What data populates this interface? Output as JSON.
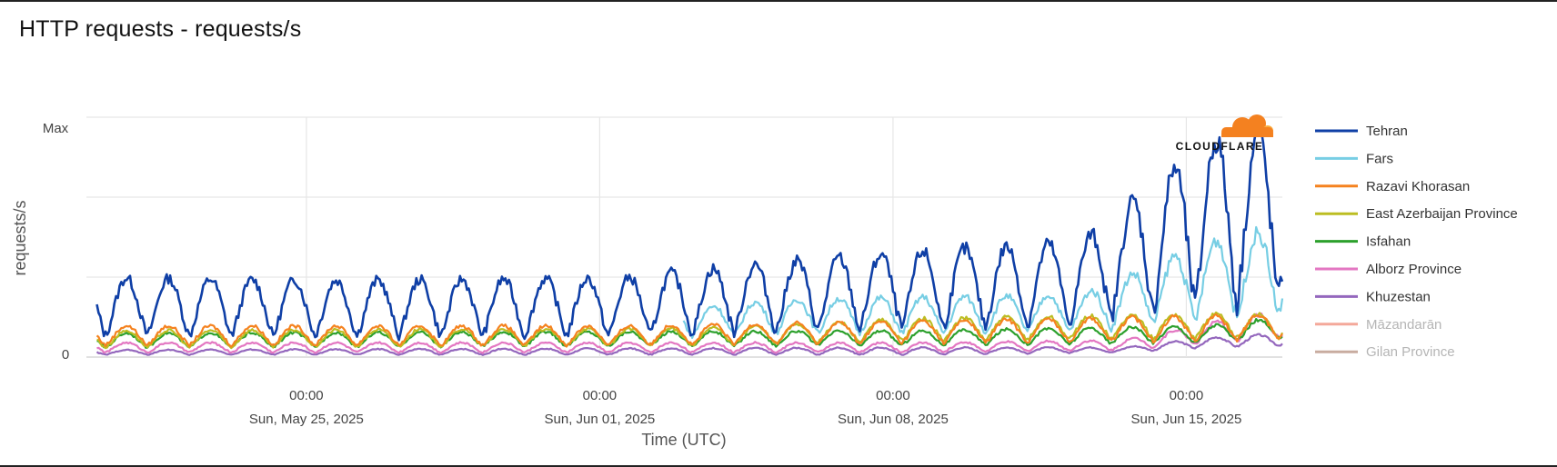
{
  "title": "HTTP requests - requests/s",
  "logo": "CLOUDFLARE",
  "chart_data": {
    "type": "line",
    "title": "HTTP requests - requests/s",
    "ylabel": "requests/s",
    "xlabel": "Time (UTC)",
    "y_ticks": [
      "Max",
      "0"
    ],
    "ylim": [
      0,
      100
    ],
    "xlim": [
      "2025-05-19T18:00",
      "2025-06-17T07:00"
    ],
    "x_ticks": [
      {
        "time": "00:00",
        "date": "Sun, May 25, 2025",
        "x": "2025-05-25T00:00"
      },
      {
        "time": "00:00",
        "date": "Sun, Jun 01, 2025",
        "x": "2025-06-01T00:00"
      },
      {
        "time": "00:00",
        "date": "Sun, Jun 08, 2025",
        "x": "2025-06-08T00:00"
      },
      {
        "time": "00:00",
        "date": "Sun, Jun 15, 2025",
        "x": "2025-06-15T00:00"
      }
    ],
    "grid": true,
    "legend_position": "right",
    "series": [
      {
        "name": "Tehran",
        "color": "#0f3fa6",
        "dates": [
          "2025-05-20",
          "2025-05-25",
          "2025-06-01",
          "2025-06-05",
          "2025-06-08",
          "2025-06-12",
          "2025-06-15",
          "2025-06-17"
        ],
        "peak": [
          33,
          32,
          33,
          40,
          44,
          48,
          90,
          95
        ],
        "trough": [
          9,
          9,
          9,
          11,
          12,
          14,
          22,
          24
        ]
      },
      {
        "name": "Fars",
        "color": "#77cee4",
        "dates": [
          "2025-06-03",
          "2025-06-05",
          "2025-06-08",
          "2025-06-12",
          "2025-06-15",
          "2025-06-17"
        ],
        "peak": [
          21,
          24,
          25,
          26,
          48,
          54
        ],
        "trough": [
          9,
          10,
          10,
          11,
          16,
          18
        ]
      },
      {
        "name": "Razavi Khorasan",
        "color": "#f5821f",
        "dates": [
          "2025-05-20",
          "2025-06-01",
          "2025-06-08",
          "2025-06-15",
          "2025-06-17"
        ],
        "peak": [
          13,
          13,
          15,
          17,
          18
        ],
        "trough": [
          5,
          5,
          6,
          7,
          8
        ]
      },
      {
        "name": "East Azerbaijan Province",
        "color": "#bcbd22",
        "dates": [
          "2025-05-20",
          "2025-06-03",
          "2025-06-08",
          "2025-06-15",
          "2025-06-17"
        ],
        "peak": [
          11,
          12,
          16,
          18,
          18
        ],
        "trough": [
          4,
          5,
          7,
          8,
          8
        ]
      },
      {
        "name": "Isfahan",
        "color": "#2ca02c",
        "dates": [
          "2025-05-20",
          "2025-06-08",
          "2025-06-15",
          "2025-06-17"
        ],
        "peak": [
          10,
          11,
          13,
          17
        ],
        "trough": [
          4,
          5,
          6,
          8
        ]
      },
      {
        "name": "Alborz Province",
        "color": "#e377c2",
        "dates": [
          "2025-05-20",
          "2025-06-08",
          "2025-06-13",
          "2025-06-15",
          "2025-06-17"
        ],
        "peak": [
          6,
          6,
          7,
          14,
          20
        ],
        "trough": [
          2,
          2,
          3,
          6,
          8
        ]
      },
      {
        "name": "Khuzestan",
        "color": "#9467bd",
        "dates": [
          "2025-05-20",
          "2025-06-08",
          "2025-06-13",
          "2025-06-15",
          "2025-06-17"
        ],
        "peak": [
          3,
          4,
          4,
          8,
          10
        ],
        "trough": [
          1,
          1,
          2,
          4,
          5
        ]
      },
      {
        "name": "Māzandarān",
        "color": "#f4a89a",
        "hidden": true
      },
      {
        "name": "Gilan Province",
        "color": "#c8aca0",
        "hidden": true
      }
    ]
  }
}
